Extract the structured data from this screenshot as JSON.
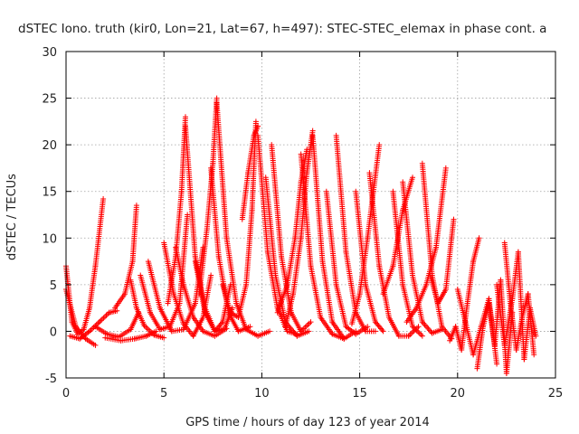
{
  "chart_data": {
    "type": "scatter",
    "title": "dSTEC Iono. truth (kir0, Lon=21, Lat=67, h=497): STEC-STEC_elemax in phase cont. a",
    "xlabel": "GPS time / hours of day 123 of year 2014",
    "ylabel": "dSTEC  / TECUs",
    "xlim": [
      0,
      25
    ],
    "ylim": [
      -5,
      30
    ],
    "xticks": [
      0,
      5,
      10,
      15,
      20,
      25
    ],
    "yticks": [
      -5,
      0,
      5,
      10,
      15,
      20,
      25,
      30
    ],
    "xtick_labels": [
      "0",
      "5",
      "10",
      "15",
      "20",
      "25"
    ],
    "ytick_labels": [
      "-5",
      "0",
      "5",
      "10",
      "15",
      "20",
      "25",
      "30"
    ],
    "grid": true,
    "marker": "+",
    "color": "#ff0000",
    "series": [
      {
        "x": [
          0.0,
          0.3,
          0.6,
          0.9,
          1.2,
          1.5,
          1.9
        ],
        "y": [
          7.0,
          1.0,
          -0.3,
          0.2,
          2.5,
          7.0,
          14.2
        ]
      },
      {
        "x": [
          0.0,
          0.5,
          1.0,
          1.5
        ],
        "y": [
          4.5,
          0.5,
          -0.8,
          -1.5
        ]
      },
      {
        "x": [
          0.2,
          0.7,
          1.2,
          1.7,
          2.2,
          2.6
        ],
        "y": [
          -0.5,
          -0.8,
          0.0,
          1.0,
          2.0,
          2.2
        ]
      },
      {
        "x": [
          1.5,
          2.1,
          2.7,
          3.3,
          3.7
        ],
        "y": [
          0.5,
          -0.3,
          -0.6,
          0.2,
          2.0
        ]
      },
      {
        "x": [
          2.5,
          3.0,
          3.4,
          3.6
        ],
        "y": [
          2.5,
          4.0,
          7.5,
          13.5
        ]
      },
      {
        "x": [
          2.0,
          2.8,
          3.5,
          4.1,
          4.6
        ],
        "y": [
          -0.7,
          -1.0,
          -0.8,
          -0.5,
          0.0
        ]
      },
      {
        "x": [
          3.3,
          3.6,
          4.0,
          4.5,
          5.0
        ],
        "y": [
          5.5,
          2.5,
          0.6,
          -0.4,
          -0.7
        ]
      },
      {
        "x": [
          3.8,
          4.3,
          4.8,
          5.3,
          5.8,
          6.2
        ],
        "y": [
          6.0,
          2.0,
          0.2,
          0.5,
          3.0,
          12.5
        ]
      },
      {
        "x": [
          4.2,
          4.8,
          5.4,
          6.0,
          6.6,
          7.0
        ],
        "y": [
          7.5,
          2.5,
          0.0,
          0.2,
          3.0,
          9.0
        ]
      },
      {
        "x": [
          5.0,
          5.5,
          6.0,
          6.5,
          7.0,
          7.4
        ],
        "y": [
          9.5,
          4.0,
          0.8,
          -0.5,
          1.5,
          6.0
        ]
      },
      {
        "x": [
          5.6,
          6.0,
          6.5,
          7.0,
          7.6,
          8.2
        ],
        "y": [
          9.0,
          5.0,
          1.5,
          0.0,
          -0.5,
          0.3
        ]
      },
      {
        "x": [
          5.2,
          5.6,
          5.9,
          6.1
        ],
        "y": [
          3.0,
          8.0,
          15.0,
          23.0
        ]
      },
      {
        "x": [
          6.1,
          6.6,
          7.1,
          7.6,
          8.1,
          8.5
        ],
        "y": [
          22.0,
          8.0,
          2.5,
          0.0,
          0.3,
          2.5
        ]
      },
      {
        "x": [
          6.6,
          7.1,
          7.6,
          8.0,
          8.4
        ],
        "y": [
          7.5,
          2.0,
          0.0,
          1.0,
          5.0
        ]
      },
      {
        "x": [
          6.8,
          7.2,
          7.5,
          7.7
        ],
        "y": [
          4.0,
          11.0,
          18.0,
          25.0
        ]
      },
      {
        "x": [
          7.7,
          8.2,
          8.7,
          9.2,
          9.8,
          10.4
        ],
        "y": [
          24.5,
          10.0,
          3.0,
          0.2,
          -0.5,
          0.0
        ]
      },
      {
        "x": [
          7.4,
          7.8,
          8.3,
          8.8,
          9.4
        ],
        "y": [
          17.5,
          8.0,
          2.0,
          0.0,
          0.5
        ]
      },
      {
        "x": [
          8.0,
          8.4,
          8.8,
          9.2,
          9.5,
          9.7
        ],
        "y": [
          5.0,
          2.0,
          1.5,
          5.0,
          13.0,
          22.5
        ]
      },
      {
        "x": [
          9.0,
          9.3,
          9.6,
          9.8
        ],
        "y": [
          12.0,
          17.0,
          21.0,
          22.0
        ]
      },
      {
        "x": [
          9.8,
          10.3,
          10.8,
          11.3,
          11.8
        ],
        "y": [
          21.0,
          8.5,
          2.5,
          0.0,
          -0.3
        ]
      },
      {
        "x": [
          10.2,
          10.7,
          11.2,
          11.8,
          12.4
        ],
        "y": [
          16.5,
          6.0,
          1.0,
          -0.5,
          0.0
        ]
      },
      {
        "x": [
          10.5,
          11.0,
          11.5,
          12.0,
          12.5
        ],
        "y": [
          20.0,
          8.0,
          2.0,
          0.0,
          1.0
        ]
      },
      {
        "x": [
          10.8,
          11.3,
          11.7,
          12.0,
          12.3
        ],
        "y": [
          2.0,
          5.0,
          10.0,
          16.0,
          19.5
        ]
      },
      {
        "x": [
          11.2,
          11.6,
          12.0,
          12.3,
          12.6
        ],
        "y": [
          0.5,
          4.0,
          10.0,
          17.0,
          21.5
        ]
      },
      {
        "x": [
          12.0,
          12.5,
          13.0,
          13.6,
          14.2,
          14.8
        ],
        "y": [
          19.0,
          7.0,
          1.5,
          -0.3,
          -0.8,
          0.0
        ]
      },
      {
        "x": [
          12.6,
          13.1,
          13.6,
          14.2
        ],
        "y": [
          21.0,
          7.5,
          1.0,
          -0.8
        ]
      },
      {
        "x": [
          13.3,
          13.8,
          14.3,
          14.8,
          15.4
        ],
        "y": [
          15.0,
          5.0,
          0.5,
          -0.3,
          0.5
        ]
      },
      {
        "x": [
          13.8,
          14.3,
          14.8,
          15.3,
          15.8
        ],
        "y": [
          21.0,
          8.5,
          2.0,
          0.0,
          0.0
        ]
      },
      {
        "x": [
          14.6,
          15.0,
          15.4,
          15.7,
          16.0
        ],
        "y": [
          0.8,
          4.0,
          10.0,
          15.0,
          20.0
        ]
      },
      {
        "x": [
          14.8,
          15.3,
          15.8,
          16.2
        ],
        "y": [
          15.0,
          5.0,
          1.0,
          0.0
        ]
      },
      {
        "x": [
          15.5,
          16.0,
          16.5,
          17.0,
          17.5,
          18.0
        ],
        "y": [
          17.0,
          7.0,
          1.5,
          -0.5,
          -0.5,
          0.5
        ]
      },
      {
        "x": [
          16.2,
          16.7,
          17.2,
          17.7
        ],
        "y": [
          4.0,
          7.0,
          13.0,
          16.5
        ]
      },
      {
        "x": [
          16.7,
          17.2,
          17.7,
          18.2
        ],
        "y": [
          15.0,
          5.0,
          0.5,
          -0.5
        ]
      },
      {
        "x": [
          17.2,
          17.7,
          18.2,
          18.7,
          19.2
        ],
        "y": [
          16.0,
          6.0,
          1.0,
          -0.2,
          0.2
        ]
      },
      {
        "x": [
          17.4,
          17.9,
          18.4,
          18.9,
          19.4
        ],
        "y": [
          1.0,
          2.5,
          5.0,
          9.0,
          17.5
        ]
      },
      {
        "x": [
          18.2,
          18.7,
          19.2,
          19.7
        ],
        "y": [
          18.0,
          6.0,
          0.5,
          -0.8
        ]
      },
      {
        "x": [
          18.6,
          19.0,
          19.4,
          19.8
        ],
        "y": [
          6.0,
          3.0,
          4.5,
          12.0
        ]
      },
      {
        "x": [
          19.6,
          19.9,
          20.2,
          20.5,
          20.8,
          21.1
        ],
        "y": [
          -1.0,
          0.5,
          -2.0,
          3.0,
          7.5,
          10.0
        ]
      },
      {
        "x": [
          20.0,
          20.4,
          20.8,
          21.2,
          21.6,
          22.0
        ],
        "y": [
          4.5,
          1.0,
          -2.5,
          0.5,
          3.5,
          -3.5
        ]
      },
      {
        "x": [
          21.0,
          21.3,
          21.6,
          21.9,
          22.2,
          22.5,
          22.8
        ],
        "y": [
          -4.0,
          0.5,
          3.0,
          -1.5,
          5.5,
          -4.5,
          2.0
        ]
      },
      {
        "x": [
          22.0,
          22.4,
          22.8,
          23.1,
          23.4,
          23.7,
          24.0
        ],
        "y": [
          5.0,
          -1.5,
          3.5,
          8.5,
          -3.0,
          2.5,
          -0.5
        ]
      },
      {
        "x": [
          22.4,
          22.7,
          23.0,
          23.3,
          23.6,
          23.9
        ],
        "y": [
          9.5,
          3.0,
          -2.0,
          1.5,
          4.0,
          -2.5
        ]
      }
    ]
  }
}
